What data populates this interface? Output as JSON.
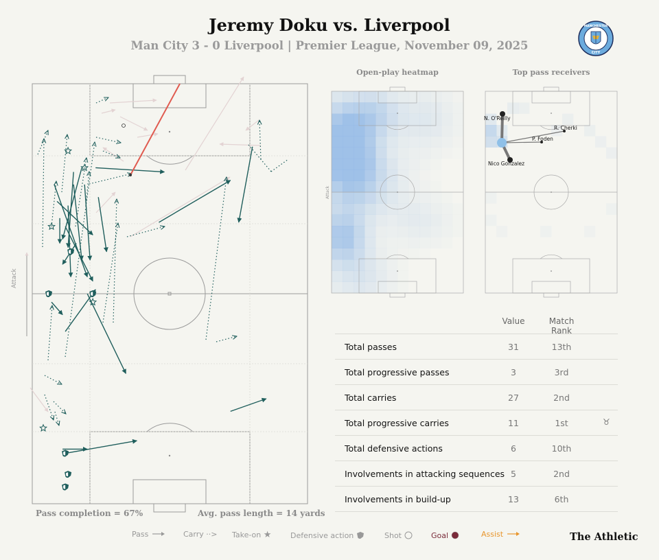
{
  "header": {
    "title": "Jeremy Doku vs. Liverpool",
    "subtitle": "Man City 3 - 0 Liverpool | Premier League, November 09, 2025",
    "crest_text": [
      "MANCHESTER",
      "CITY"
    ]
  },
  "colors": {
    "background": "#f5f5f0",
    "pass": "#1f5e5c",
    "goal": "#7a2b3a",
    "assist": "#e8962e",
    "assist_line": "#e05a4f",
    "faded_pass": "#e3d3d3",
    "heat": "#8fb7e6"
  },
  "pitch": {
    "attack_label": "Attack",
    "pass_completion": "Pass completion = 67%",
    "avg_pass_length": "Avg. pass length = 14 yards"
  },
  "panels": {
    "heatmap_title": "Open-play heatmap",
    "receivers_title": "Top pass receivers",
    "attack_label": "Attack"
  },
  "receivers": [
    {
      "name": "N. O'Reilly",
      "passes": 3
    },
    {
      "name": "R. Cherki",
      "passes": 1
    },
    {
      "name": "P. Foden",
      "passes": 1
    },
    {
      "name": "Nico Gonzalez",
      "passes": 3
    }
  ],
  "table": {
    "col_value": "Value",
    "col_rank": "Match Rank",
    "rows": [
      {
        "label": "Total passes",
        "value": "31",
        "rank": "13th",
        "trophy": false
      },
      {
        "label": "Total progressive passes",
        "value": "3",
        "rank": "3rd",
        "trophy": false
      },
      {
        "label": "Total carries",
        "value": "27",
        "rank": "2nd",
        "trophy": false
      },
      {
        "label": "Total progressive carries",
        "value": "11",
        "rank": "1st",
        "trophy": true
      },
      {
        "label": "Total defensive actions",
        "value": "6",
        "rank": "10th",
        "trophy": false
      },
      {
        "label": "Involvements in attacking sequences",
        "value": "5",
        "rank": "2nd",
        "trophy": false
      },
      {
        "label": "Involvements in build-up",
        "value": "13",
        "rank": "6th",
        "trophy": false
      }
    ],
    "trophy_icon": "trophy-icon"
  },
  "legend": {
    "pass": "Pass",
    "carry": "Carry",
    "takeon": "Take-on",
    "defensive": "Defensive action",
    "shot": "Shot",
    "goal": "Goal",
    "assist": "Assist"
  },
  "brand": "The Athletic",
  "chart_data": {
    "type": "scatter",
    "title": "Jeremy Doku vs. Liverpool",
    "subtitle": "Man City 3 - 0 Liverpool | Premier League, November 09, 2025",
    "description_units": "pitch units 0-100 (x = width from left touchline, y = length from own goal, attack upward)",
    "passes": [
      {
        "x1": 8,
        "y1": 76,
        "x2": 20,
        "y2": 54,
        "type": "complete"
      },
      {
        "x1": 9,
        "y1": 72,
        "x2": 22,
        "y2": 64,
        "type": "complete"
      },
      {
        "x1": 13,
        "y1": 71,
        "x2": 14,
        "y2": 54,
        "type": "complete"
      },
      {
        "x1": 15,
        "y1": 76,
        "x2": 18,
        "y2": 58,
        "type": "complete"
      },
      {
        "x1": 15,
        "y1": 79,
        "x2": 13,
        "y2": 61,
        "type": "complete"
      },
      {
        "x1": 18,
        "y1": 80,
        "x2": 11,
        "y2": 63,
        "type": "complete"
      },
      {
        "x1": 19,
        "y1": 76,
        "x2": 21,
        "y2": 58,
        "type": "complete"
      },
      {
        "x1": 10,
        "y1": 68,
        "x2": 10,
        "y2": 62,
        "type": "complete"
      },
      {
        "x1": 12,
        "y1": 66,
        "x2": 22,
        "y2": 53,
        "type": "complete"
      },
      {
        "x1": 16,
        "y1": 62,
        "x2": 11,
        "y2": 57,
        "type": "complete"
      },
      {
        "x1": 24,
        "y1": 73,
        "x2": 27,
        "y2": 60,
        "type": "complete"
      },
      {
        "x1": 23,
        "y1": 80,
        "x2": 48,
        "y2": 79,
        "type": "complete"
      },
      {
        "x1": 46,
        "y1": 67,
        "x2": 72,
        "y2": 77,
        "type": "complete"
      },
      {
        "x1": 80,
        "y1": 85,
        "x2": 75,
        "y2": 67,
        "type": "complete"
      },
      {
        "x1": 20,
        "y1": 50,
        "x2": 34,
        "y2": 31,
        "type": "complete"
      },
      {
        "x1": 12,
        "y1": 41,
        "x2": 23,
        "y2": 51,
        "type": "complete"
      },
      {
        "x1": 7,
        "y1": 48,
        "x2": 11,
        "y2": 45,
        "type": "complete"
      },
      {
        "x1": 72,
        "y1": 22,
        "x2": 85,
        "y2": 25,
        "type": "complete"
      },
      {
        "x1": 12,
        "y1": 12,
        "x2": 38,
        "y2": 15,
        "type": "complete"
      },
      {
        "x1": 11,
        "y1": 13,
        "x2": 20,
        "y2": 13,
        "type": "complete"
      }
    ],
    "assist": {
      "x1": 35,
      "y1": 71,
      "x2": 52,
      "y2": 99
    },
    "defensive_actions": [
      [
        6,
        50
      ],
      [
        14,
        60
      ],
      [
        22,
        50
      ],
      [
        13,
        7
      ],
      [
        12,
        12
      ],
      [
        12,
        4
      ]
    ],
    "takeons": [
      [
        13,
        84
      ],
      [
        19,
        80
      ],
      [
        7,
        66
      ],
      [
        22,
        48
      ],
      [
        4,
        18
      ]
    ],
    "shots": [
      [
        33,
        84
      ]
    ],
    "heatmap_hotspots": [
      "left wing final third",
      "left wing middle third",
      "left defensive third"
    ]
  }
}
